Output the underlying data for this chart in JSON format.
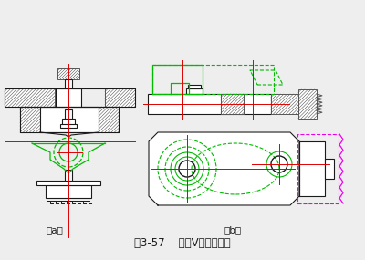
{
  "title": "图3-57    活动V形块的应用",
  "label_a": "（a）",
  "label_b": "（b）",
  "bg_color": "#eeeeee",
  "black": "#1a1a1a",
  "green": "#00bb00",
  "red": "#dd0000",
  "magenta": "#ee00ee",
  "dg": "#555555",
  "white": "#ffffff"
}
